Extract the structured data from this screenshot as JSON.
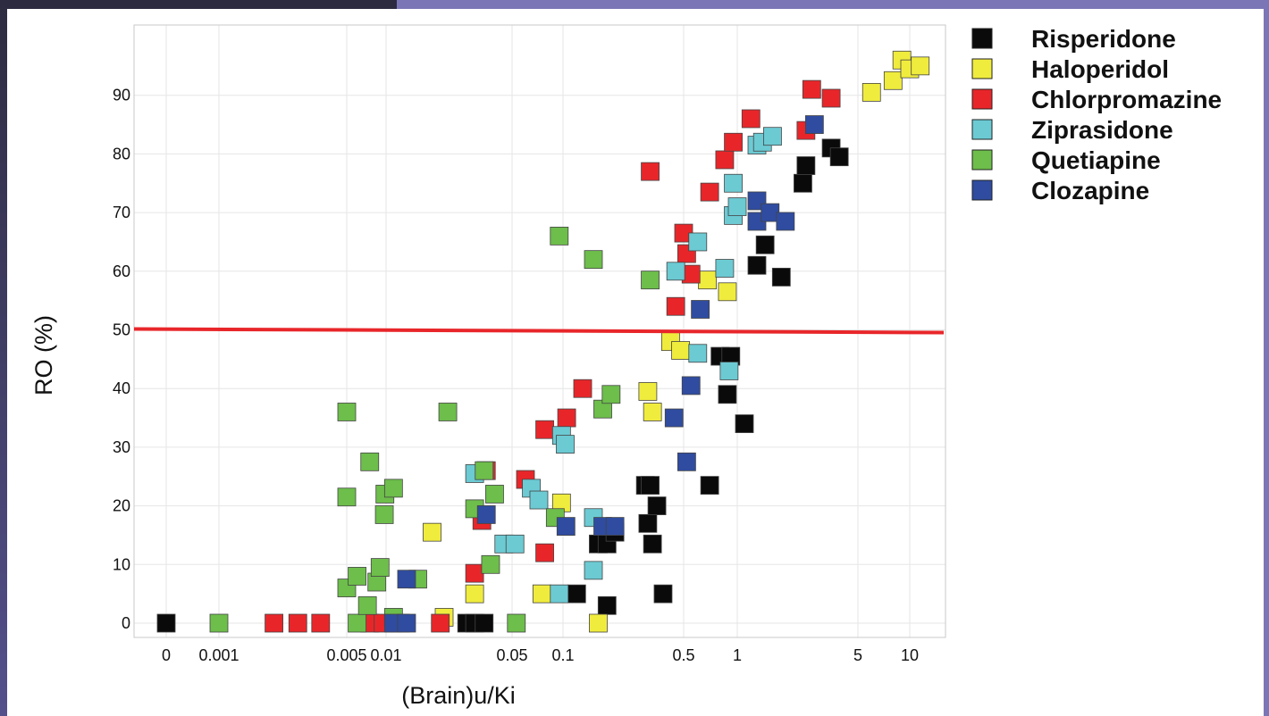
{
  "chart_data": {
    "type": "scatter",
    "title": "",
    "xlabel": "(Brain)u/Ki",
    "ylabel": "RO (%)",
    "x_scale": "log-like (breaks at 0 and 0.001)",
    "ylim": [
      0,
      100
    ],
    "x_ticks": [
      "0",
      "0.001",
      "0.005",
      "0.01",
      "0.05",
      "0.1",
      "0.5",
      "1",
      "5",
      "10"
    ],
    "y_ticks": [
      "0",
      "10",
      "20",
      "30",
      "40",
      "50",
      "60",
      "70",
      "80",
      "90"
    ],
    "grid": true,
    "legend_position": "right",
    "reference_line": {
      "y": 50,
      "color": "#e8262a"
    },
    "series": [
      {
        "name": "Risperidone",
        "color": "#0a0a0a",
        "points": [
          [
            0,
            0
          ],
          [
            0.028,
            0
          ],
          [
            0.031,
            0
          ],
          [
            0.035,
            0
          ],
          [
            0.12,
            5
          ],
          [
            0.38,
            5
          ],
          [
            0.18,
            3
          ],
          [
            0.16,
            13.5
          ],
          [
            0.18,
            13.5
          ],
          [
            0.2,
            15.5
          ],
          [
            0.31,
            17
          ],
          [
            0.33,
            13.5
          ],
          [
            0.35,
            20
          ],
          [
            0.3,
            23.5
          ],
          [
            0.32,
            23.5
          ],
          [
            0.7,
            23.5
          ],
          [
            0.8,
            45.5
          ],
          [
            0.92,
            45.5
          ],
          [
            0.88,
            39
          ],
          [
            1.1,
            34
          ],
          [
            1.3,
            61
          ],
          [
            1.45,
            64.5
          ],
          [
            1.8,
            59
          ],
          [
            2.4,
            75
          ],
          [
            2.5,
            78
          ],
          [
            3.5,
            81
          ],
          [
            3.9,
            79.5
          ]
        ]
      },
      {
        "name": "Haloperidol",
        "color": "#f0ec3d",
        "points": [
          [
            0.018,
            15.5
          ],
          [
            0.021,
            1
          ],
          [
            0.031,
            5
          ],
          [
            0.075,
            5
          ],
          [
            0.098,
            20.5
          ],
          [
            0.16,
            0
          ],
          [
            0.31,
            39.5
          ],
          [
            0.33,
            36
          ],
          [
            0.42,
            48
          ],
          [
            0.48,
            46.5
          ],
          [
            0.68,
            58.5
          ],
          [
            0.88,
            56.5
          ],
          [
            6,
            90.5
          ],
          [
            8,
            92.5
          ],
          [
            9,
            96
          ],
          [
            10,
            94.5
          ],
          [
            11.5,
            95
          ]
        ]
      },
      {
        "name": "Chlorpromazine",
        "color": "#e8262a",
        "points": [
          [
            0.002,
            0
          ],
          [
            0.0027,
            0
          ],
          [
            0.0036,
            0
          ],
          [
            0.0075,
            0
          ],
          [
            0.0095,
            0
          ],
          [
            0.012,
            0
          ],
          [
            0.02,
            0
          ],
          [
            0.031,
            8.5
          ],
          [
            0.034,
            17.5
          ],
          [
            0.036,
            26
          ],
          [
            0.06,
            24.5
          ],
          [
            0.078,
            12
          ],
          [
            0.078,
            33
          ],
          [
            0.105,
            35
          ],
          [
            0.13,
            40
          ],
          [
            0.32,
            77
          ],
          [
            0.45,
            54
          ],
          [
            0.52,
            63
          ],
          [
            0.5,
            66.5
          ],
          [
            0.55,
            59.5
          ],
          [
            0.7,
            73.5
          ],
          [
            0.85,
            79
          ],
          [
            0.95,
            82
          ],
          [
            1.2,
            86
          ],
          [
            2.5,
            84
          ],
          [
            2.7,
            91
          ],
          [
            3.5,
            89.5
          ]
        ]
      },
      {
        "name": "Ziprasidone",
        "color": "#6ccad3",
        "points": [
          [
            0.031,
            25.5
          ],
          [
            0.045,
            13.5
          ],
          [
            0.052,
            13.5
          ],
          [
            0.065,
            23
          ],
          [
            0.072,
            21
          ],
          [
            0.095,
            5
          ],
          [
            0.098,
            32
          ],
          [
            0.103,
            30.5
          ],
          [
            0.15,
            9
          ],
          [
            0.15,
            18
          ],
          [
            0.45,
            60
          ],
          [
            0.6,
            46
          ],
          [
            0.6,
            65
          ],
          [
            0.85,
            60.5
          ],
          [
            0.9,
            43
          ],
          [
            0.95,
            69.5
          ],
          [
            0.95,
            75
          ],
          [
            1.0,
            71
          ],
          [
            1.3,
            81.5
          ],
          [
            1.4,
            82
          ],
          [
            1.6,
            83
          ]
        ]
      },
      {
        "name": "Quetiapine",
        "color": "#6dbe4b",
        "points": [
          [
            0.001,
            0
          ],
          [
            0.005,
            36
          ],
          [
            0.005,
            21.5
          ],
          [
            0.005,
            6
          ],
          [
            0.006,
            8
          ],
          [
            0.006,
            0
          ],
          [
            0.0075,
            27.5
          ],
          [
            0.0072,
            3
          ],
          [
            0.0085,
            7
          ],
          [
            0.009,
            9.5
          ],
          [
            0.0097,
            18.5
          ],
          [
            0.0098,
            22
          ],
          [
            0.011,
            23
          ],
          [
            0.011,
            1
          ],
          [
            0.015,
            7.5
          ],
          [
            0.022,
            36
          ],
          [
            0.031,
            19.5
          ],
          [
            0.035,
            26
          ],
          [
            0.038,
            10
          ],
          [
            0.04,
            22
          ],
          [
            0.053,
            0
          ],
          [
            0.09,
            18
          ],
          [
            0.095,
            66
          ],
          [
            0.15,
            62
          ],
          [
            0.17,
            36.5
          ],
          [
            0.19,
            39
          ],
          [
            0.32,
            58.5
          ]
        ]
      },
      {
        "name": "Clozapine",
        "color": "#2f4ca0",
        "points": [
          [
            0.011,
            0
          ],
          [
            0.013,
            0
          ],
          [
            0.013,
            7.5
          ],
          [
            0.036,
            18.5
          ],
          [
            0.104,
            16.5
          ],
          [
            0.17,
            16.5
          ],
          [
            0.2,
            16.5
          ],
          [
            0.44,
            35
          ],
          [
            0.52,
            27.5
          ],
          [
            0.55,
            40.5
          ],
          [
            0.62,
            53.5
          ],
          [
            1.3,
            68.5
          ],
          [
            1.3,
            72
          ],
          [
            1.55,
            70
          ],
          [
            1.9,
            68.5
          ],
          [
            2.8,
            85
          ]
        ]
      }
    ]
  }
}
